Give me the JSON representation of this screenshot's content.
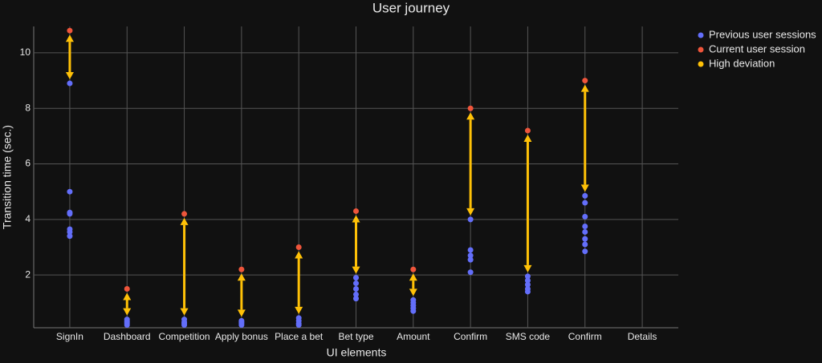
{
  "chart_data": {
    "type": "scatter",
    "title": "User journey",
    "x_label": "UI elements",
    "y_label": "Transition time (sec.)",
    "categories": [
      "SignIn",
      "Dashboard",
      "Competition",
      "Apply bonus",
      "Place a bet",
      "Bet type",
      "Amount",
      "Confirm",
      "SMS code",
      "Confirm",
      "Details"
    ],
    "ylim": [
      0.1,
      10.95
    ],
    "yticks": [
      2,
      4,
      6,
      8,
      10
    ],
    "grid": true,
    "legend": "outside-right",
    "series": [
      {
        "name": "Previous user sessions",
        "color": "#636efa",
        "values": [
          [
            8.9,
            5.0,
            4.25,
            4.2,
            3.65,
            3.55,
            3.4
          ],
          [
            0.4,
            0.35,
            0.3,
            0.25,
            0.2
          ],
          [
            0.4,
            0.3,
            0.25,
            0.2
          ],
          [
            0.35,
            0.3,
            0.25,
            0.2
          ],
          [
            0.45,
            0.35,
            0.25,
            0.2
          ],
          [
            1.9,
            1.7,
            1.5,
            1.3,
            1.15
          ],
          [
            1.1,
            1.0,
            0.9,
            0.8,
            0.7
          ],
          [
            4.0,
            2.9,
            2.7,
            2.55,
            2.1
          ],
          [
            1.95,
            1.8,
            1.65,
            1.5,
            1.4
          ],
          [
            4.85,
            4.6,
            4.1,
            3.75,
            3.55,
            3.3,
            3.1,
            2.85
          ],
          []
        ]
      },
      {
        "name": "Current user session",
        "color": "#ef553b",
        "values": [
          10.8,
          1.5,
          4.2,
          2.2,
          3.0,
          4.3,
          2.2,
          8.0,
          7.2,
          9.0,
          null
        ]
      },
      {
        "name": "High deviation",
        "color": "#ffc107"
      }
    ]
  }
}
